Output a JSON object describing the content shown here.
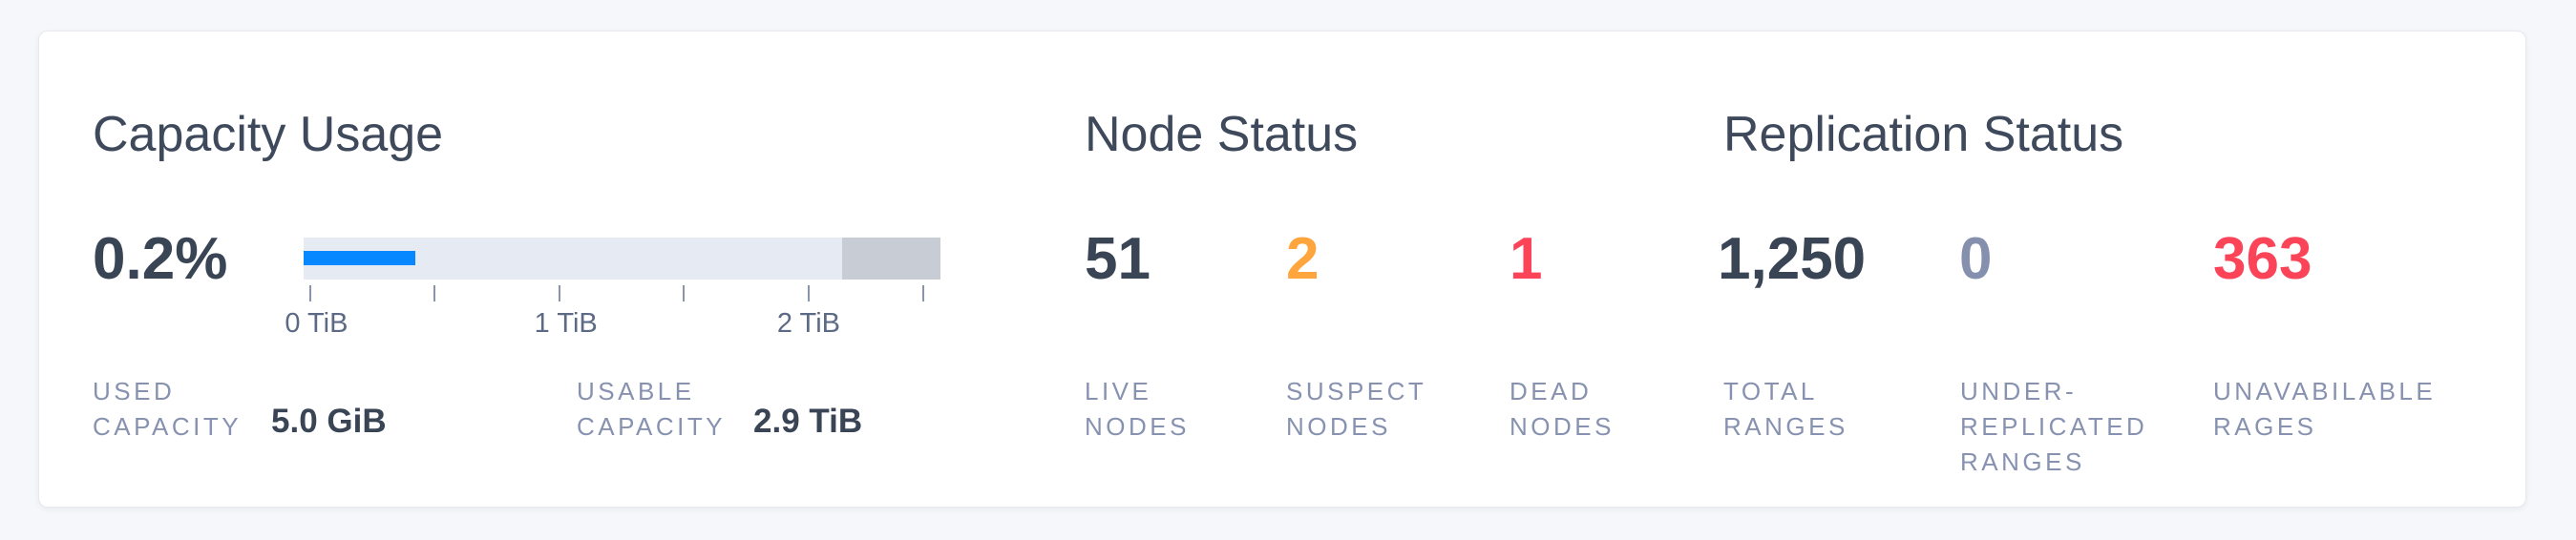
{
  "colors": {
    "page_background": "#f5f7fa",
    "card_background": "#ffffff",
    "dark_text": "#394455",
    "muted_label": "#8792b0",
    "warning_orange": "#ffa53d",
    "danger_red": "#fb4458",
    "muted_number": "#8490ad",
    "capacity_used_blue": "#0788ff",
    "capacity_track": "#e6eaf3",
    "capacity_reserved": "#c8ccd4"
  },
  "capacity_usage": {
    "title": "Capacity Usage",
    "percent_used": "0.2%",
    "stats": [
      {
        "label": "USED\nCAPACITY",
        "value": "5.0 GiB"
      },
      {
        "label": "USABLE\nCAPACITY",
        "value": "2.9 TiB"
      }
    ]
  },
  "node_status": {
    "title": "Node Status",
    "metrics": [
      {
        "value": "51",
        "label": "LIVE\nNODES",
        "status": "dark"
      },
      {
        "value": "2",
        "label": "SUSPECT\nNODES",
        "status": "warning"
      },
      {
        "value": "1",
        "label": "DEAD\nNODES",
        "status": "danger"
      }
    ]
  },
  "replication_status": {
    "title": "Replication Status",
    "metrics": [
      {
        "value": "1,250",
        "label": "TOTAL\nRANGES",
        "status": "dark"
      },
      {
        "value": "0",
        "label": "UNDER-\nREPLICATED\nRANGES",
        "status": "muted"
      },
      {
        "value": "363",
        "label": "UNAVABILABLE\nRAGES",
        "status": "danger"
      }
    ]
  },
  "chart_data": {
    "type": "bar",
    "title": "Capacity Usage",
    "percent_used_label": "0.2%",
    "used_capacity": "5.0 GiB",
    "usable_capacity": "2.9 TiB",
    "axis_unit": "TiB",
    "axis_range": [
      0,
      2.5
    ],
    "axis_tick_values": [
      0,
      0.5,
      1,
      1.5,
      2,
      2.5
    ],
    "axis_tick_labels": [
      "0 TiB",
      "1 TiB",
      "2 TiB"
    ],
    "used_bar_pct": 17.5,
    "reserved_bar_pct": 15.4,
    "grid": false,
    "legend": false
  }
}
